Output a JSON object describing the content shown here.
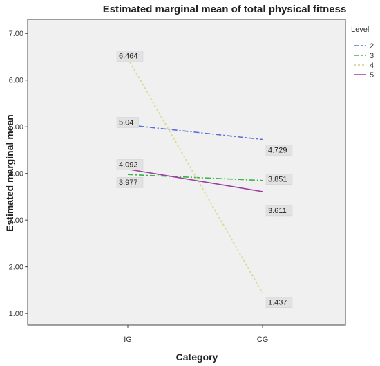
{
  "chart_data": {
    "type": "line",
    "title": "Estimated marginal mean of total physical fitness",
    "xlabel": "Category",
    "ylabel": "Estimated marginal mean",
    "categories": [
      "IG",
      "CG"
    ],
    "ylim": [
      0.75,
      7.3
    ],
    "yticks": [
      "1.00",
      "2.00",
      "3.00",
      "4.00",
      "5.00",
      "6.00",
      "7.00"
    ],
    "legend": {
      "title": "Level",
      "position": "right"
    },
    "grid": false,
    "background": "#f0f0f0",
    "series": [
      {
        "name": "2",
        "values": [
          5.04,
          4.729
        ],
        "labels": [
          "5.04",
          "4.729"
        ],
        "color": "#5b6fd6",
        "dash": "dash-dot"
      },
      {
        "name": "3",
        "values": [
          3.977,
          3.851
        ],
        "labels": [
          "3.977",
          "3.851"
        ],
        "color": "#38b24a",
        "dash": "dash-dot"
      },
      {
        "name": "4",
        "values": [
          6.464,
          1.437
        ],
        "labels": [
          "6.464",
          "1.437"
        ],
        "color": "#d8dc9a",
        "dash": "dotted"
      },
      {
        "name": "5",
        "values": [
          4.092,
          3.611
        ],
        "labels": [
          "4.092",
          "3.611"
        ],
        "color": "#9a3fa0",
        "dash": "solid"
      }
    ]
  }
}
